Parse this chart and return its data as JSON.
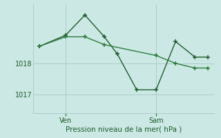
{
  "bg_color": "#cce8e4",
  "grid_color": "#aaccca",
  "line_color_dark": "#1a5c2a",
  "line_color_med": "#2a7a3a",
  "xlabel": "Pression niveau de la mer( hPa )",
  "xlabel_color": "#1a5c2a",
  "tick_label_color": "#1a5c2a",
  "ylim": [
    1016.4,
    1019.9
  ],
  "yticks": [
    1017,
    1018
  ],
  "xlim": [
    -0.5,
    13.5
  ],
  "xtick_positions": [
    2,
    9
  ],
  "xtick_labels": [
    "Ven",
    "Sam"
  ],
  "series1_x": [
    0,
    2,
    3.5,
    5,
    6,
    7.5,
    9,
    10.5,
    12,
    13
  ],
  "series1_y": [
    1018.55,
    1018.9,
    1019.55,
    1018.85,
    1018.3,
    1017.15,
    1017.15,
    1018.7,
    1018.2,
    1018.2
  ],
  "series2_x": [
    0,
    2,
    3.5,
    5,
    9,
    10.5,
    12,
    13
  ],
  "series2_y": [
    1018.55,
    1018.85,
    1018.85,
    1018.6,
    1018.25,
    1018.0,
    1017.85,
    1017.85
  ],
  "marker_size": 4,
  "linewidth": 1.0
}
